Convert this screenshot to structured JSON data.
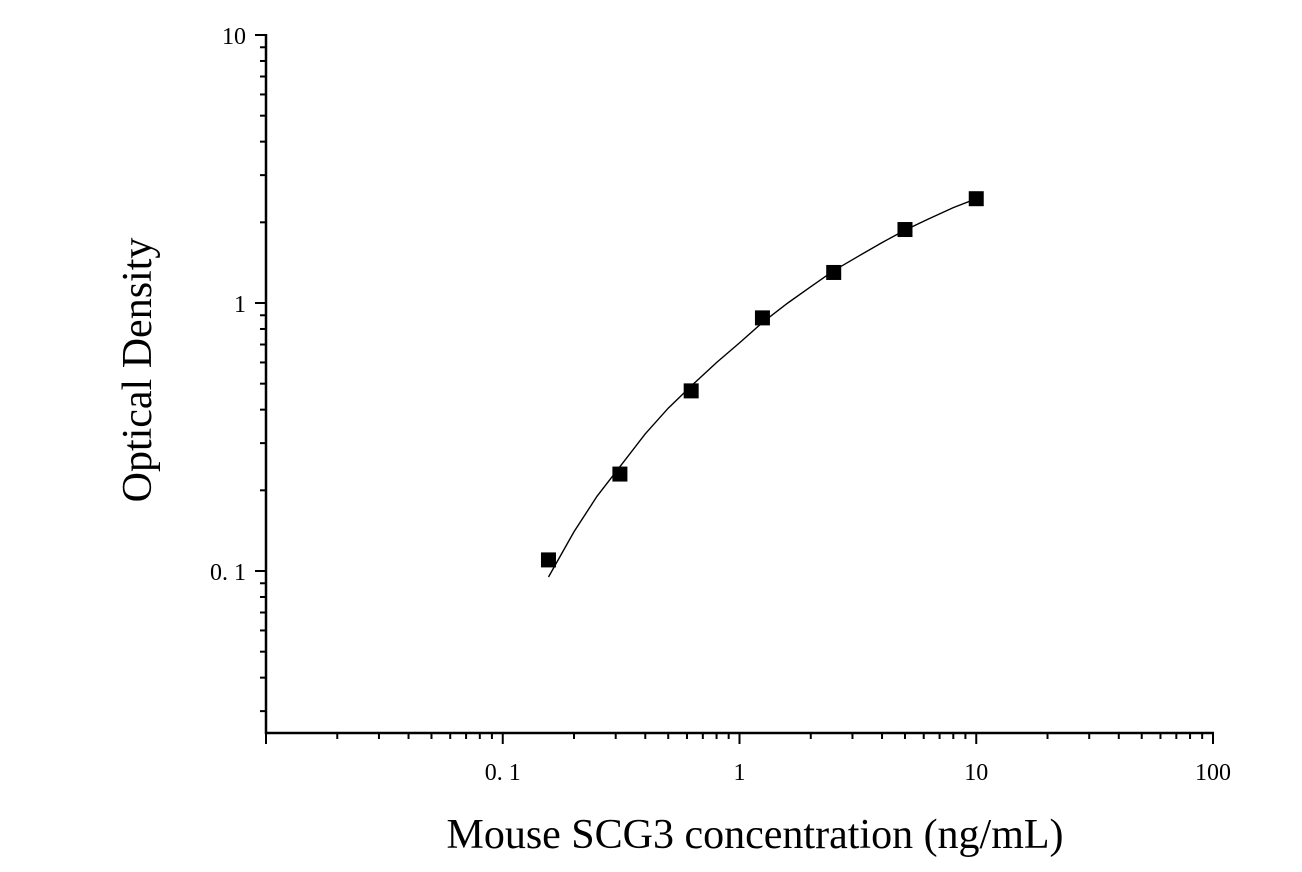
{
  "chart_data": {
    "type": "scatter",
    "title": "",
    "xlabel": "Mouse SCG3 concentration (ng/mL)",
    "ylabel": "Optical Density",
    "x_scale": "log",
    "y_scale": "log",
    "xlim": [
      0.01,
      100
    ],
    "ylim": [
      0.025,
      10
    ],
    "x_ticks": [
      {
        "value": 0.1,
        "label": "0. 1"
      },
      {
        "value": 1,
        "label": "1"
      },
      {
        "value": 10,
        "label": "10"
      },
      {
        "value": 100,
        "label": "100"
      }
    ],
    "y_ticks": [
      {
        "value": 0.1,
        "label": "0. 1"
      },
      {
        "value": 1,
        "label": "1"
      },
      {
        "value": 10,
        "label": "10"
      }
    ],
    "grid": false,
    "legend": "none",
    "series": [
      {
        "kind": "points",
        "marker": "square",
        "color": "#000000",
        "x": [
          0.156,
          0.3125,
          0.625,
          1.25,
          2.5,
          5,
          10
        ],
        "y": [
          0.11,
          0.23,
          0.47,
          0.88,
          1.3,
          1.88,
          2.45
        ]
      },
      {
        "kind": "fit-curve",
        "color": "#000000",
        "x": [
          0.156,
          0.2,
          0.25,
          0.3125,
          0.4,
          0.5,
          0.625,
          0.8,
          1,
          1.25,
          1.6,
          2,
          2.5,
          3.2,
          4,
          5,
          6.3,
          8,
          10
        ],
        "y": [
          0.095,
          0.14,
          0.19,
          0.245,
          0.325,
          0.405,
          0.49,
          0.6,
          0.71,
          0.845,
          1.0,
          1.15,
          1.32,
          1.5,
          1.68,
          1.87,
          2.06,
          2.27,
          2.45
        ]
      }
    ]
  }
}
